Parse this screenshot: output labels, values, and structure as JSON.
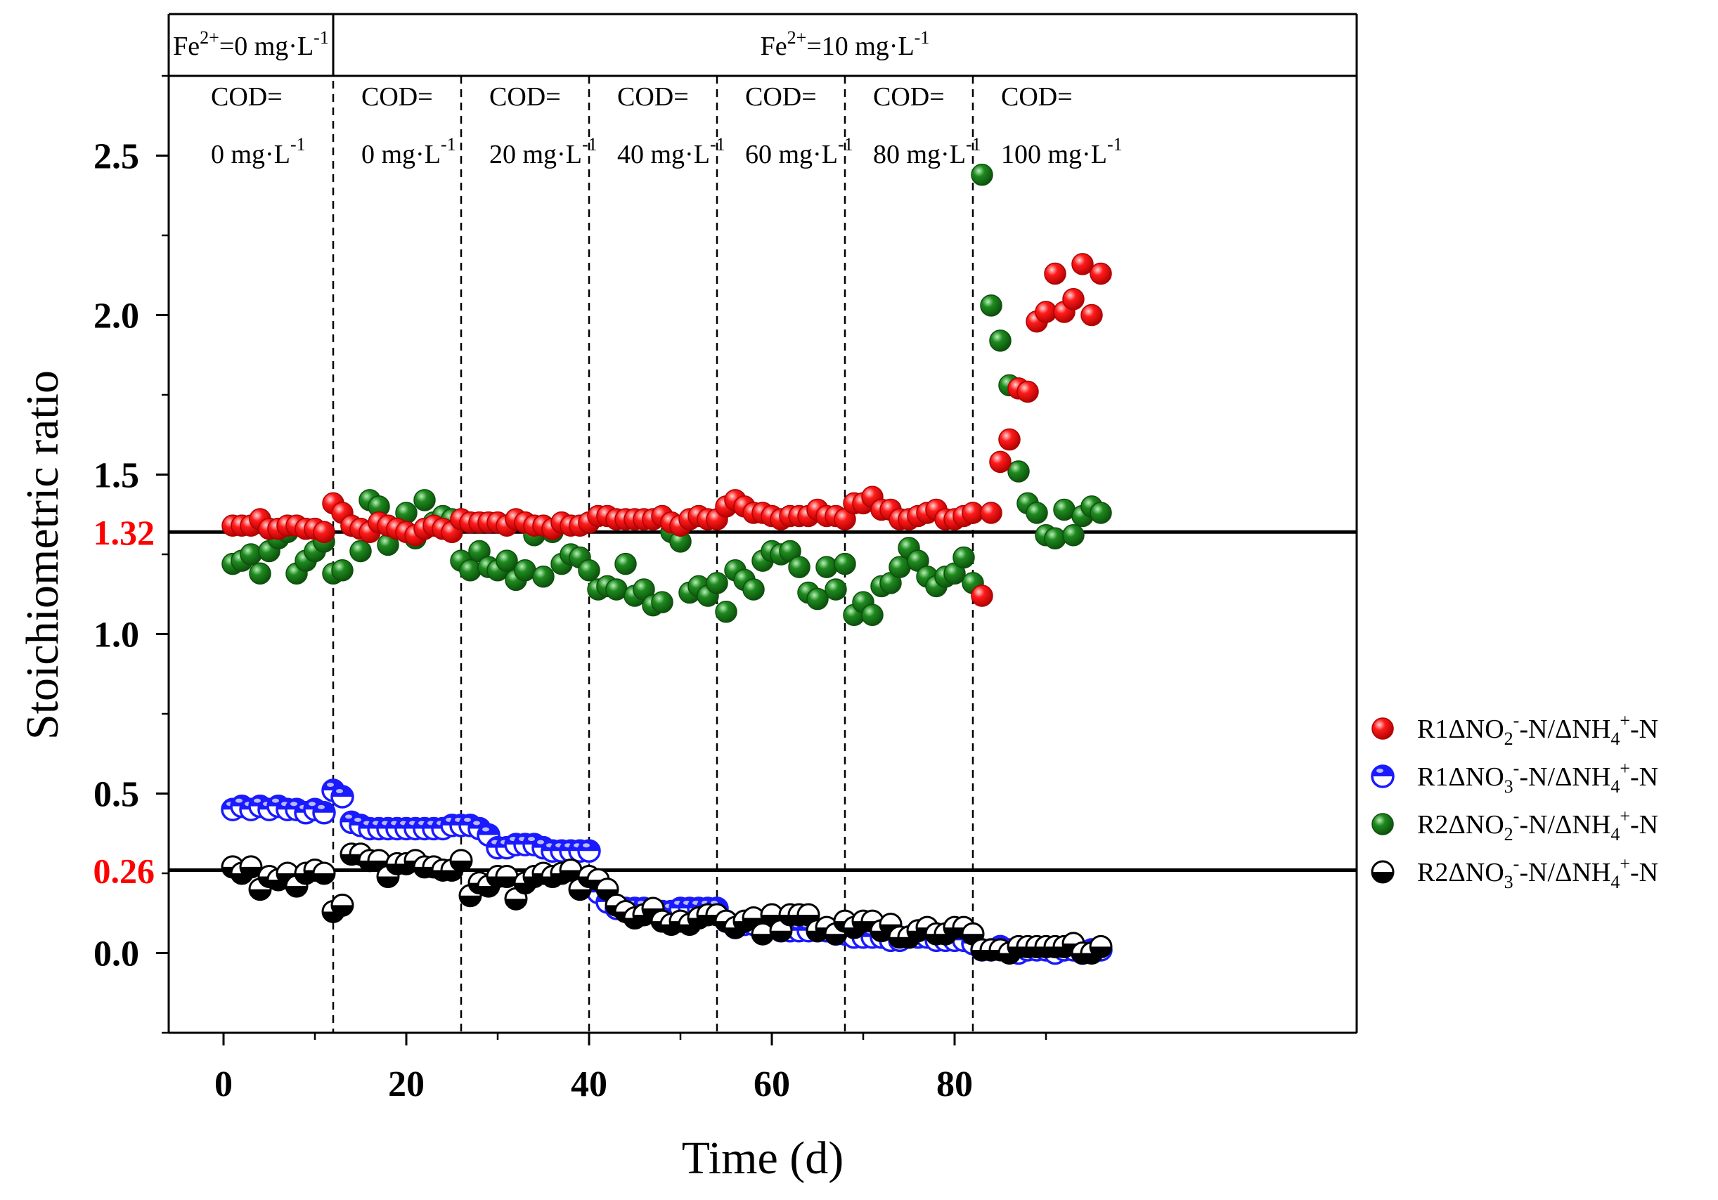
{
  "chart_data": {
    "type": "scatter",
    "xlabel": "Time (d)",
    "ylabel": "Stoichiometric ratio",
    "xlim": [
      -6,
      124
    ],
    "ylim": [
      -0.25,
      2.75
    ],
    "x_ticks": [
      "0",
      "20",
      "40",
      "60",
      "80"
    ],
    "y_ticks": [
      "0.0",
      "0.5",
      "1.0",
      "1.5",
      "2.0",
      "2.5"
    ],
    "x_tick_values": [
      0,
      20,
      40,
      60,
      80
    ],
    "y_tick_values": [
      0,
      0.5,
      1.0,
      1.5,
      2.0,
      2.5
    ],
    "reference_lines": [
      {
        "y": 1.32,
        "label": "1.32",
        "color": "#ff0000"
      },
      {
        "y": 0.26,
        "label": "0.26",
        "color": "#ff0000"
      }
    ],
    "phase_boundaries": [
      12,
      26,
      40,
      54,
      68,
      82
    ],
    "fe_bands": [
      {
        "from": -6,
        "to": 12,
        "prefix": "Fe",
        "sup": "2+",
        "mid": "=0 mg·L",
        "unit_sup": "-1"
      },
      {
        "from": 12,
        "to": 124,
        "prefix": "Fe",
        "sup": "2+",
        "mid": "=10 mg·L",
        "unit_sup": "-1"
      }
    ],
    "cod_phases": [
      {
        "x_start": -6,
        "line1": "COD=",
        "line2": "0 mg·L",
        "unit_sup": "-1"
      },
      {
        "x_start": 12,
        "line1": "COD=",
        "line2": "0 mg·L",
        "unit_sup": "-1"
      },
      {
        "x_start": 26,
        "line1": "COD=",
        "line2": "20 mg·L",
        "unit_sup": "-1"
      },
      {
        "x_start": 40,
        "line1": "COD=",
        "line2": "40 mg·L",
        "unit_sup": "-1"
      },
      {
        "x_start": 54,
        "line1": "COD=",
        "line2": "60 mg·L",
        "unit_sup": "-1"
      },
      {
        "x_start": 68,
        "line1": "COD=",
        "line2": "80 mg·L",
        "unit_sup": "-1"
      },
      {
        "x_start": 82,
        "line1": "COD=",
        "line2": "100 mg·L",
        "unit_sup": "-1"
      }
    ],
    "legend_position": "right",
    "series": [
      {
        "name": "R1ΔNO2--N/ΔNH4+-N",
        "legend": {
          "a": "R1ΔNO",
          "b": "2",
          "c": "-",
          "d": "-N/ΔNH",
          "e": "4",
          "f": "+",
          "g": "-N"
        },
        "marker": "filled",
        "color": "#ff0000",
        "dark": "#b00000",
        "x": [
          1,
          2,
          3,
          4,
          5,
          6,
          7,
          8,
          9,
          10,
          11,
          12,
          13,
          14,
          15,
          16,
          17,
          18,
          19,
          20,
          21,
          22,
          23,
          24,
          25,
          26,
          27,
          28,
          29,
          30,
          31,
          32,
          33,
          34,
          35,
          36,
          37,
          38,
          39,
          40,
          41,
          42,
          43,
          44,
          45,
          46,
          47,
          48,
          49,
          50,
          51,
          52,
          53,
          54,
          55,
          56,
          57,
          58,
          59,
          60,
          61,
          62,
          63,
          64,
          65,
          66,
          67,
          68,
          69,
          70,
          71,
          72,
          73,
          74,
          75,
          76,
          77,
          78,
          79,
          80,
          81,
          82,
          83,
          84,
          85,
          86,
          87,
          88,
          89,
          90,
          91,
          92,
          93,
          94,
          95,
          96
        ],
        "y": [
          1.34,
          1.34,
          1.34,
          1.36,
          1.33,
          1.33,
          1.34,
          1.34,
          1.33,
          1.33,
          1.32,
          1.41,
          1.38,
          1.34,
          1.33,
          1.32,
          1.35,
          1.34,
          1.33,
          1.32,
          1.31,
          1.33,
          1.34,
          1.33,
          1.32,
          1.36,
          1.35,
          1.35,
          1.35,
          1.35,
          1.34,
          1.36,
          1.35,
          1.34,
          1.34,
          1.33,
          1.35,
          1.34,
          1.34,
          1.35,
          1.37,
          1.37,
          1.36,
          1.36,
          1.36,
          1.36,
          1.36,
          1.37,
          1.35,
          1.34,
          1.36,
          1.37,
          1.36,
          1.36,
          1.4,
          1.42,
          1.4,
          1.38,
          1.38,
          1.37,
          1.36,
          1.37,
          1.37,
          1.37,
          1.39,
          1.37,
          1.37,
          1.36,
          1.41,
          1.41,
          1.43,
          1.39,
          1.39,
          1.36,
          1.36,
          1.37,
          1.38,
          1.39,
          1.36,
          1.36,
          1.37,
          1.38,
          1.12,
          1.38,
          1.54,
          1.61,
          1.77,
          1.76,
          1.98,
          2.01,
          2.13,
          2.01,
          2.05,
          2.16,
          2.0,
          2.13
        ]
      },
      {
        "name": "R1ΔNO3--N/ΔNH4+-N",
        "legend": {
          "a": "R1ΔNO",
          "b": "3",
          "c": "-",
          "d": "-N/ΔNH",
          "e": "4",
          "f": "+",
          "g": "-N"
        },
        "marker": "half-open",
        "color": "#1a1aff",
        "x": [
          1,
          2,
          3,
          4,
          5,
          6,
          7,
          8,
          9,
          10,
          11,
          12,
          13,
          14,
          15,
          16,
          17,
          18,
          19,
          20,
          21,
          22,
          23,
          24,
          25,
          26,
          27,
          28,
          29,
          30,
          31,
          32,
          33,
          34,
          35,
          36,
          37,
          38,
          39,
          40,
          41,
          42,
          43,
          44,
          45,
          46,
          47,
          48,
          49,
          50,
          51,
          52,
          53,
          54,
          55,
          56,
          57,
          58,
          59,
          60,
          61,
          62,
          63,
          64,
          65,
          66,
          67,
          68,
          69,
          70,
          71,
          72,
          73,
          74,
          75,
          76,
          77,
          78,
          79,
          80,
          81,
          82,
          83,
          84,
          85,
          86,
          87,
          88,
          89,
          90,
          91,
          92,
          93,
          94,
          95,
          96
        ],
        "y": [
          0.45,
          0.46,
          0.45,
          0.46,
          0.45,
          0.46,
          0.45,
          0.45,
          0.44,
          0.45,
          0.44,
          0.51,
          0.49,
          0.41,
          0.4,
          0.39,
          0.39,
          0.39,
          0.39,
          0.39,
          0.39,
          0.39,
          0.39,
          0.39,
          0.4,
          0.4,
          0.4,
          0.39,
          0.37,
          0.33,
          0.33,
          0.34,
          0.34,
          0.34,
          0.33,
          0.32,
          0.32,
          0.32,
          0.32,
          0.32,
          0.19,
          0.16,
          0.14,
          0.14,
          0.14,
          0.14,
          0.13,
          0.13,
          0.13,
          0.14,
          0.14,
          0.14,
          0.14,
          0.14,
          0.1,
          0.08,
          0.09,
          0.09,
          0.09,
          0.08,
          0.07,
          0.07,
          0.07,
          0.07,
          0.07,
          0.07,
          0.06,
          0.06,
          0.05,
          0.05,
          0.05,
          0.05,
          0.04,
          0.04,
          0.05,
          0.05,
          0.05,
          0.04,
          0.04,
          0.04,
          0.04,
          0.03,
          0.01,
          0.01,
          0.02,
          0.01,
          0.0,
          0.01,
          0.01,
          0.01,
          0.0,
          0.01,
          0.01,
          0.0,
          0.01,
          0.01
        ]
      },
      {
        "name": "R2ΔNO2--N/ΔNH4+-N",
        "legend": {
          "a": "R2ΔNO",
          "b": "2",
          "c": "-",
          "d": "-N/ΔNH",
          "e": "4",
          "f": "+",
          "g": "-N"
        },
        "marker": "filled",
        "color": "#1f8a1f",
        "dark": "#0d4f0d",
        "x": [
          1,
          2,
          3,
          4,
          5,
          6,
          7,
          8,
          9,
          10,
          11,
          12,
          13,
          14,
          15,
          16,
          17,
          18,
          19,
          20,
          21,
          22,
          23,
          24,
          25,
          26,
          27,
          28,
          29,
          30,
          31,
          32,
          33,
          34,
          35,
          36,
          37,
          38,
          39,
          40,
          41,
          42,
          43,
          44,
          45,
          46,
          47,
          48,
          49,
          50,
          51,
          52,
          53,
          54,
          55,
          56,
          57,
          58,
          59,
          60,
          61,
          62,
          63,
          64,
          65,
          66,
          67,
          68,
          69,
          70,
          71,
          72,
          73,
          74,
          75,
          76,
          77,
          78,
          79,
          80,
          81,
          82,
          83,
          84,
          85,
          86,
          87,
          88,
          89,
          90,
          91,
          92,
          93,
          94,
          95,
          96
        ],
        "y": [
          1.22,
          1.23,
          1.25,
          1.19,
          1.26,
          1.3,
          1.32,
          1.19,
          1.23,
          1.26,
          1.29,
          1.19,
          1.2,
          1.34,
          1.26,
          1.42,
          1.4,
          1.28,
          1.33,
          1.38,
          1.3,
          1.42,
          1.35,
          1.37,
          1.36,
          1.23,
          1.2,
          1.26,
          1.21,
          1.2,
          1.23,
          1.17,
          1.2,
          1.31,
          1.18,
          1.32,
          1.22,
          1.25,
          1.24,
          1.2,
          1.14,
          1.15,
          1.14,
          1.22,
          1.12,
          1.14,
          1.09,
          1.1,
          1.32,
          1.29,
          1.13,
          1.15,
          1.12,
          1.16,
          1.07,
          1.2,
          1.17,
          1.14,
          1.23,
          1.26,
          1.25,
          1.26,
          1.21,
          1.13,
          1.11,
          1.21,
          1.14,
          1.22,
          1.06,
          1.1,
          1.06,
          1.15,
          1.16,
          1.21,
          1.27,
          1.23,
          1.18,
          1.15,
          1.18,
          1.19,
          1.24,
          1.16,
          2.44,
          2.03,
          1.92,
          1.78,
          1.51,
          1.41,
          1.38,
          1.31,
          1.3,
          1.39,
          1.31,
          1.37,
          1.4,
          1.38
        ]
      },
      {
        "name": "R2ΔNO3--N/ΔNH4+-N",
        "legend": {
          "a": "R2ΔNO",
          "b": "3",
          "c": "-",
          "d": "-N/ΔNH",
          "e": "4",
          "f": "+",
          "g": "-N"
        },
        "marker": "half-filled",
        "color": "#000000",
        "x": [
          1,
          2,
          3,
          4,
          5,
          6,
          7,
          8,
          9,
          10,
          11,
          12,
          13,
          14,
          15,
          16,
          17,
          18,
          19,
          20,
          21,
          22,
          23,
          24,
          25,
          26,
          27,
          28,
          29,
          30,
          31,
          32,
          33,
          34,
          35,
          36,
          37,
          38,
          39,
          40,
          41,
          42,
          43,
          44,
          45,
          46,
          47,
          48,
          49,
          50,
          51,
          52,
          53,
          54,
          55,
          56,
          57,
          58,
          59,
          60,
          61,
          62,
          63,
          64,
          65,
          66,
          67,
          68,
          69,
          70,
          71,
          72,
          73,
          74,
          75,
          76,
          77,
          78,
          79,
          80,
          81,
          82,
          83,
          84,
          85,
          86,
          87,
          88,
          89,
          90,
          91,
          92,
          93,
          94,
          95,
          96
        ],
        "y": [
          0.27,
          0.25,
          0.27,
          0.2,
          0.24,
          0.23,
          0.25,
          0.21,
          0.25,
          0.26,
          0.25,
          0.13,
          0.15,
          0.31,
          0.31,
          0.29,
          0.29,
          0.24,
          0.28,
          0.28,
          0.29,
          0.27,
          0.27,
          0.26,
          0.26,
          0.29,
          0.18,
          0.22,
          0.21,
          0.24,
          0.24,
          0.17,
          0.22,
          0.24,
          0.25,
          0.24,
          0.25,
          0.26,
          0.2,
          0.24,
          0.23,
          0.2,
          0.15,
          0.13,
          0.11,
          0.12,
          0.14,
          0.1,
          0.09,
          0.1,
          0.09,
          0.11,
          0.12,
          0.12,
          0.1,
          0.08,
          0.1,
          0.11,
          0.06,
          0.12,
          0.07,
          0.12,
          0.12,
          0.12,
          0.07,
          0.08,
          0.06,
          0.1,
          0.08,
          0.1,
          0.1,
          0.07,
          0.09,
          0.05,
          0.05,
          0.07,
          0.08,
          0.06,
          0.06,
          0.08,
          0.08,
          0.06,
          0.01,
          0.01,
          0.01,
          0.0,
          0.02,
          0.02,
          0.02,
          0.02,
          0.02,
          0.02,
          0.03,
          0.0,
          0.0,
          0.02
        ]
      }
    ]
  }
}
